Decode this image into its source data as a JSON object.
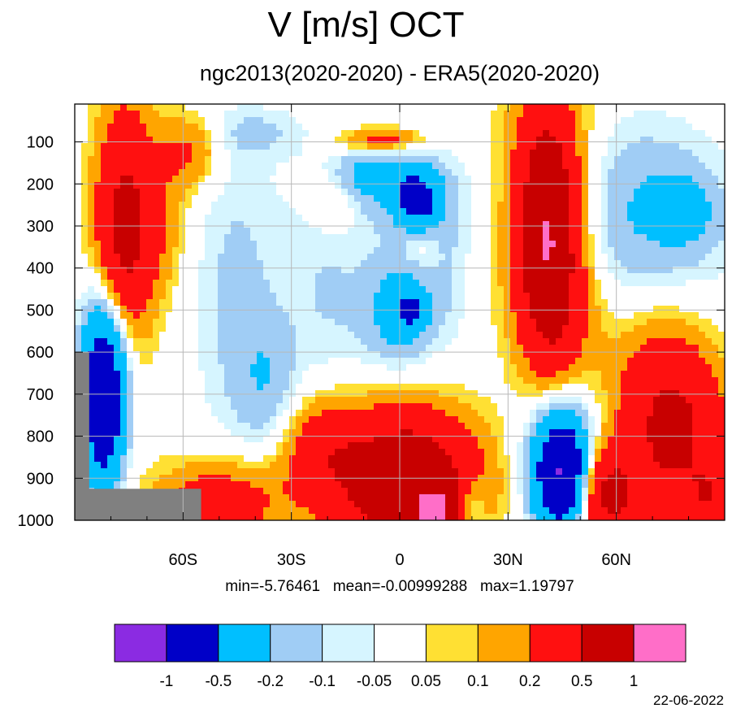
{
  "title": "V [m/s] OCT",
  "subtitle": "ngc2013(2020-2020) - ERA5(2020-2020)",
  "stats": {
    "min_label": "min=",
    "min": "-5.76461",
    "mean_label": "mean=",
    "mean": "-0.00999288",
    "max_label": "max=",
    "max": "1.19797",
    "text": "min=-5.76461   mean=-0.00999288   max=1.19797"
  },
  "date": "22-06-2022",
  "chart_data": {
    "type": "heatmap",
    "title": "V [m/s] OCT",
    "subtitle": "ngc2013(2020-2020) - ERA5(2020-2020)",
    "x_axis": {
      "ticks": [
        -60,
        -30,
        0,
        30,
        60
      ],
      "tick_labels": [
        "60S",
        "30S",
        "0",
        "30N",
        "60N"
      ],
      "range": [
        -90,
        90
      ]
    },
    "y_axis": {
      "ticks": [
        100,
        200,
        300,
        400,
        500,
        600,
        700,
        800,
        900,
        1000
      ],
      "tick_labels": [
        "100",
        "200",
        "300",
        "400",
        "500",
        "600",
        "700",
        "800",
        "900",
        "1000"
      ],
      "range": [
        10,
        1000
      ],
      "inverted": true
    },
    "grid": true,
    "colorbar": {
      "levels": [
        "-1",
        "-0.5",
        "-0.2",
        "-0.1",
        "-0.05",
        "0.05",
        "0.1",
        "0.2",
        "0.5",
        "1"
      ],
      "colors": [
        "#8b2be2",
        "#0000c8",
        "#00bfff",
        "#a0cdf5",
        "#d6f5ff",
        "#ffffff",
        "#ffe033",
        "#ffa500",
        "#ff1010",
        "#c80000",
        "#ff6ec8"
      ]
    },
    "missing_color": "#808080",
    "regions": [
      {
        "name": "antarctic-upper-jet",
        "lat": -75,
        "p_top": 140,
        "p_bottom": 590,
        "class": 8
      },
      {
        "name": "antarctic-lowlevel",
        "lat": -80,
        "p_top": 620,
        "p_bottom": 920,
        "class": 1
      },
      {
        "name": "equatorial-upper-neg",
        "lat": 5,
        "p_top": 190,
        "p_bottom": 260,
        "class": 1
      },
      {
        "name": "equatorial-lower-pos",
        "lat": 5,
        "p_top": 800,
        "p_bottom": 1000,
        "class": 9
      },
      {
        "name": "nh-subtropic-jet",
        "lat": 40,
        "p_top": 150,
        "p_bottom": 640,
        "class": 8
      },
      {
        "name": "nh-lowlevel-neg",
        "lat": 45,
        "p_top": 820,
        "p_bottom": 1000,
        "class": 1
      },
      {
        "name": "nh-high-lat-pos",
        "lat": 75,
        "p_top": 780,
        "p_bottom": 1000,
        "class": 8
      }
    ]
  }
}
